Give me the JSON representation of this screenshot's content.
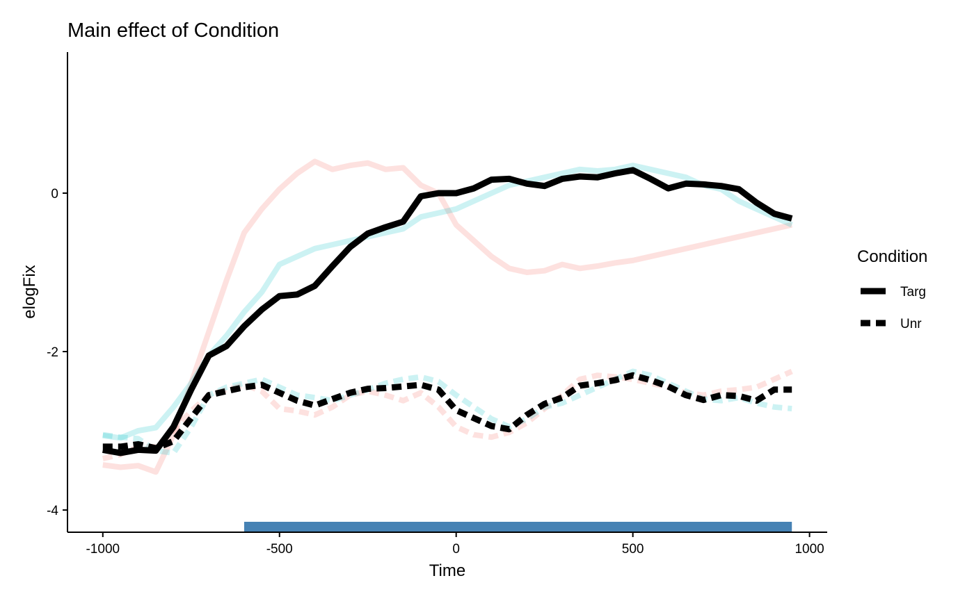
{
  "chart_data": {
    "type": "line",
    "title": "Main effect of Condition",
    "xlabel": "Time",
    "ylabel": "elogFix",
    "xlim": [
      -1100,
      1050
    ],
    "ylim": [
      -4.28,
      1.78
    ],
    "x_ticks": [
      -1000,
      -500,
      0,
      500,
      1000
    ],
    "x_tick_labels": [
      "-1000",
      "-500",
      "0",
      "500",
      "1000"
    ],
    "y_ticks": [
      -4,
      -2,
      0
    ],
    "y_tick_labels": [
      "-4",
      "-2",
      "0"
    ],
    "grid": false,
    "legend": {
      "title": "Condition",
      "placement": "right",
      "entries": [
        {
          "label": "Targ",
          "linetype": "solid"
        },
        {
          "label": "Unr",
          "linetype": "dashed"
        }
      ]
    },
    "colors": {
      "main": "#000000",
      "group_a": "#f8766d",
      "group_b": "#00bfc4",
      "significance_bar": "#4682b4"
    },
    "x": [
      -1000,
      -950,
      -900,
      -850,
      -800,
      -750,
      -700,
      -650,
      -600,
      -550,
      -500,
      -450,
      -400,
      -350,
      -300,
      -250,
      -200,
      -150,
      -100,
      -50,
      0,
      50,
      100,
      150,
      200,
      250,
      300,
      350,
      400,
      450,
      500,
      550,
      600,
      650,
      700,
      750,
      800,
      850,
      900,
      950
    ],
    "series": [
      {
        "name": "Targ",
        "values": [
          -3.24,
          -3.28,
          -3.24,
          -3.25,
          -2.95,
          -2.48,
          -2.05,
          -1.93,
          -1.68,
          -1.47,
          -1.3,
          -1.28,
          -1.17,
          -0.92,
          -0.68,
          -0.51,
          -0.43,
          -0.36,
          -0.04,
          0.0,
          0.0,
          0.06,
          0.17,
          0.18,
          0.12,
          0.09,
          0.18,
          0.21,
          0.2,
          0.25,
          0.29,
          0.18,
          0.06,
          0.12,
          0.11,
          0.09,
          0.05,
          -0.12,
          -0.26,
          -0.32
        ]
      },
      {
        "name": "Unr",
        "values": [
          -3.2,
          -3.2,
          -3.17,
          -3.22,
          -3.13,
          -2.84,
          -2.55,
          -2.5,
          -2.45,
          -2.42,
          -2.52,
          -2.62,
          -2.68,
          -2.6,
          -2.52,
          -2.47,
          -2.46,
          -2.44,
          -2.42,
          -2.48,
          -2.74,
          -2.84,
          -2.94,
          -2.98,
          -2.8,
          -2.66,
          -2.58,
          -2.43,
          -2.4,
          -2.36,
          -2.3,
          -2.36,
          -2.44,
          -2.55,
          -2.61,
          -2.55,
          -2.56,
          -2.62,
          -2.48,
          -2.48
        ]
      },
      {
        "values": [
          -3.43,
          -3.46,
          -3.44,
          -3.52,
          -3.05,
          -2.4,
          -1.75,
          -1.1,
          -0.5,
          -0.2,
          0.05,
          0.25,
          0.4,
          0.3,
          0.35,
          0.38,
          0.3,
          0.32,
          0.1,
          0.0,
          -0.4,
          -0.6,
          -0.8,
          -0.95,
          -1.0,
          -0.98,
          -0.9,
          -0.95,
          -0.92,
          -0.88,
          -0.85,
          -0.8,
          -0.75,
          -0.7,
          -0.65,
          -0.6,
          -0.55,
          -0.5,
          -0.45,
          -0.4
        ]
      },
      {
        "values": [
          -3.06,
          -3.09,
          -3.0,
          -2.96,
          -2.7,
          -2.4,
          -2.05,
          -1.8,
          -1.5,
          -1.25,
          -0.9,
          -0.8,
          -0.7,
          -0.65,
          -0.6,
          -0.55,
          -0.5,
          -0.45,
          -0.3,
          -0.25,
          -0.2,
          -0.1,
          0.0,
          0.1,
          0.15,
          0.2,
          0.25,
          0.3,
          0.28,
          0.3,
          0.35,
          0.3,
          0.25,
          0.2,
          0.1,
          0.05,
          -0.1,
          -0.2,
          -0.3,
          -0.4
        ]
      },
      {
        "values": [
          -3.35,
          -3.3,
          -3.2,
          -3.2,
          -3.0,
          -2.75,
          -2.55,
          -2.48,
          -2.42,
          -2.5,
          -2.72,
          -2.75,
          -2.8,
          -2.7,
          -2.55,
          -2.5,
          -2.55,
          -2.62,
          -2.52,
          -2.7,
          -2.95,
          -3.05,
          -3.08,
          -3.02,
          -2.9,
          -2.72,
          -2.55,
          -2.35,
          -2.3,
          -2.32,
          -2.35,
          -2.4,
          -2.45,
          -2.52,
          -2.55,
          -2.5,
          -2.48,
          -2.45,
          -2.35,
          -2.25
        ]
      },
      {
        "values": [
          -3.05,
          -3.08,
          -3.1,
          -3.25,
          -3.28,
          -2.95,
          -2.55,
          -2.45,
          -2.4,
          -2.35,
          -2.45,
          -2.55,
          -2.58,
          -2.62,
          -2.55,
          -2.48,
          -2.4,
          -2.35,
          -2.32,
          -2.38,
          -2.55,
          -2.7,
          -2.85,
          -2.95,
          -2.85,
          -2.7,
          -2.65,
          -2.55,
          -2.45,
          -2.35,
          -2.25,
          -2.3,
          -2.4,
          -2.5,
          -2.6,
          -2.62,
          -2.58,
          -2.65,
          -2.7,
          -2.72
        ]
      }
    ],
    "significance_bar": {
      "from": -600,
      "to": 950
    }
  }
}
